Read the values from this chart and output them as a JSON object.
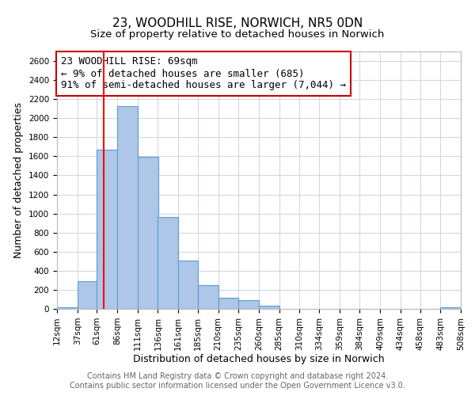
{
  "title": "23, WOODHILL RISE, NORWICH, NR5 0DN",
  "subtitle": "Size of property relative to detached houses in Norwich",
  "xlabel": "Distribution of detached houses by size in Norwich",
  "ylabel": "Number of detached properties",
  "bar_color": "#aec6e8",
  "bar_edge_color": "#5a9fd4",
  "background_color": "#ffffff",
  "grid_color": "#d0d8e8",
  "red_line_x": 69,
  "annotation_line1": "23 WOODHILL RISE: 69sqm",
  "annotation_line2": "← 9% of detached houses are smaller (685)",
  "annotation_line3": "91% of semi-detached houses are larger (7,044) →",
  "annotation_box_color": "#ffffff",
  "annotation_box_edge": "#cc0000",
  "bin_edges": [
    12,
    37,
    61,
    86,
    111,
    136,
    161,
    185,
    210,
    235,
    260,
    285,
    310,
    334,
    359,
    384,
    409,
    434,
    458,
    483,
    508
  ],
  "bin_counts": [
    20,
    290,
    1670,
    2130,
    1595,
    960,
    505,
    250,
    120,
    90,
    35,
    0,
    0,
    0,
    0,
    0,
    0,
    0,
    0,
    20
  ],
  "ylim": [
    0,
    2700
  ],
  "yticks": [
    0,
    200,
    400,
    600,
    800,
    1000,
    1200,
    1400,
    1600,
    1800,
    2000,
    2200,
    2400,
    2600
  ],
  "xtick_labels": [
    "12sqm",
    "37sqm",
    "61sqm",
    "86sqm",
    "111sqm",
    "136sqm",
    "161sqm",
    "185sqm",
    "210sqm",
    "235sqm",
    "260sqm",
    "285sqm",
    "310sqm",
    "334sqm",
    "359sqm",
    "384sqm",
    "409sqm",
    "434sqm",
    "458sqm",
    "483sqm",
    "508sqm"
  ],
  "footer_line1": "Contains HM Land Registry data © Crown copyright and database right 2024.",
  "footer_line2": "Contains public sector information licensed under the Open Government Licence v3.0.",
  "title_fontsize": 11,
  "subtitle_fontsize": 9.5,
  "axis_label_fontsize": 9,
  "tick_fontsize": 7.5,
  "annotation_fontsize": 9,
  "footer_fontsize": 7
}
